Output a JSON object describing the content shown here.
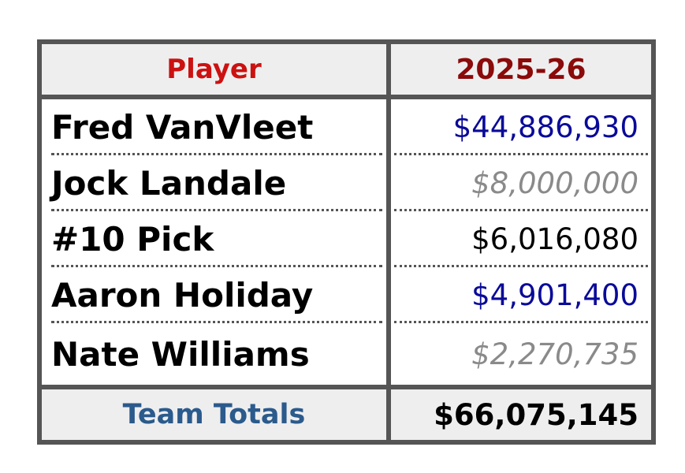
{
  "columns": {
    "player": "Player",
    "season": "2025-26"
  },
  "rows": [
    {
      "player": "Fred VanVleet",
      "salary": "$44,886,930",
      "color": "#0a0a99",
      "italic": false
    },
    {
      "player": "Jock Landale",
      "salary": "$8,000,000",
      "color": "#8a8a8a",
      "italic": true
    },
    {
      "player": "#10 Pick",
      "salary": "$6,016,080",
      "color": "#000000",
      "italic": false
    },
    {
      "player": "Aaron Holiday",
      "salary": "$4,901,400",
      "color": "#0a0a99",
      "italic": false
    },
    {
      "player": "Nate Williams",
      "salary": "$2,270,735",
      "color": "#8a8a8a",
      "italic": true
    }
  ],
  "totals": {
    "label": "Team Totals",
    "value": "$66,075,145"
  }
}
